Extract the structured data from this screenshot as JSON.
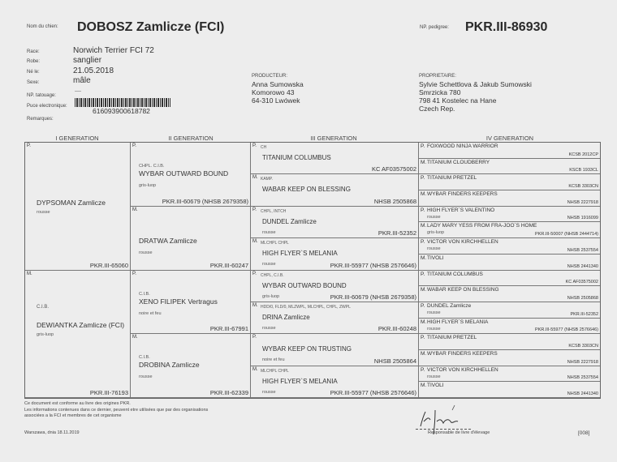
{
  "header": {
    "dog_name_label": "Nom du chien:",
    "dog_name": "DOBOSZ Zamlicze (FCI)",
    "pedigree_label": "NP. pedigree:",
    "pedigree_no": "PKR.III-86930",
    "fields": [
      {
        "label": "Race:",
        "value": "Norwich Terrier FCI 72"
      },
      {
        "label": "Robe:",
        "value": "sanglier"
      },
      {
        "label": "Né le:",
        "value": "21.05.2018"
      },
      {
        "label": "Sexe:",
        "value": "mâle"
      },
      {
        "label": "NP. tatouage:",
        "value": "----"
      },
      {
        "label": "Puce electronique:",
        "value": "616093900618782"
      },
      {
        "label": "Remarques:",
        "value": ""
      }
    ],
    "producer": {
      "label": "PRODUCTEUR:",
      "lines": [
        "Anna Sumowska",
        "Komorowo 43",
        "64-310 Lwówek"
      ]
    },
    "owner": {
      "label": "PROPRIETAIRE:",
      "lines": [
        "Sylvie Schettlova & Jakub Sumowski",
        "Smrzicka 780",
        "798 41 Kostelec na Hane",
        "Czech Rep."
      ]
    }
  },
  "generations": [
    "I GENERATION",
    "II GENERATION",
    "III GENERATION",
    "IV GENERATION"
  ],
  "pedigree": {
    "g1": [
      {
        "pm": "P.",
        "titles": "",
        "name": "DYPSOMAN Zamlicze",
        "color": "rousse",
        "reg": "PKR.III-65060"
      },
      {
        "pm": "M.",
        "titles": "C.I.B.",
        "name": "DEWIANTKA Zamlicze (FCI)",
        "color": "gris-luop",
        "reg": "PKR.III-76193"
      }
    ],
    "g2": [
      {
        "pm": "P.",
        "titles": "CHPL. C.I.B.",
        "name": "WYBAR OUTWARD BOUND",
        "color": "gris-luop",
        "reg": "PKR.III-60679 (NHSB 2679358)"
      },
      {
        "pm": "M.",
        "titles": "",
        "name": "DRATWA Zamlicze",
        "color": "rousse",
        "reg": "PKR.III-60247"
      },
      {
        "pm": "P.",
        "titles": "C.I.B.",
        "name": "XENO FILIPEK Vertragus",
        "color": "noire et feu",
        "reg": "PKR.III-67991"
      },
      {
        "pm": "M.",
        "titles": "C.I.B.",
        "name": "DROBINA Zamlicze",
        "color": "rousse",
        "reg": "PKR.III-62339"
      }
    ],
    "g3": [
      {
        "pm": "P.",
        "titles": "CH",
        "name": "TITANIUM COLUMBUS",
        "color": "",
        "reg": "KC AF03575002"
      },
      {
        "pm": "M.",
        "titles": "KAMP.",
        "name": "WABAR KEEP ON BLESSING",
        "color": "",
        "reg": "NHSB 2505868"
      },
      {
        "pm": "P.",
        "titles": "CHPL, INTCH",
        "name": "DUNDEL Zamlicze",
        "color": "rousse",
        "reg": "PKR.III-52352"
      },
      {
        "pm": "M.",
        "titles": "MLCHPL CHPL",
        "name": "HIGH FLYER`S MELANIA",
        "color": "rousse",
        "reg": "PKR.III-55977 (NHSB 2576646)"
      },
      {
        "pm": "P.",
        "titles": "CHPL, C.I.B.",
        "name": "WYBAR OUTWARD BOUND",
        "color": "gris-luop",
        "reg": "PKR.III-60679 (NHSB 2679358)"
      },
      {
        "pm": "M.",
        "titles": "HDD/0, FLD/0, MLZWPL, MLCHPL, CHPL, ZWPL",
        "name": "DRINA Zamlicze",
        "color": "rousse",
        "reg": "PKR.III-60248"
      },
      {
        "pm": "P.",
        "titles": "",
        "name": "WYBAR KEEP ON TRUSTING",
        "color": "noire et feu",
        "reg": "NHSB 2505864"
      },
      {
        "pm": "M.",
        "titles": "MLCHPL CHPL",
        "name": "HIGH FLYER`S MELANIA",
        "color": "rousse",
        "reg": "PKR.III-55977 (NHSB 2576646)"
      }
    ],
    "g4": [
      {
        "pm": "P.",
        "name": "FOXWOOD NINJA WARRIOR",
        "color": "",
        "reg": "KCSB 2012CP"
      },
      {
        "pm": "M.",
        "name": "TITANIUM CLOUDBERRY",
        "color": "",
        "reg": "KSCB 1933CL"
      },
      {
        "pm": "P.",
        "name": "TITANIUM PRETZEL",
        "color": "",
        "reg": "KCSB 3303CN"
      },
      {
        "pm": "M.",
        "name": "WYBAR FINDERS KEEPERS",
        "color": "",
        "reg": "NHSB 2227918"
      },
      {
        "pm": "P.",
        "name": "HIGH FLYER`S VALENTINO",
        "color": "rousse",
        "reg": "NHSB 1916099"
      },
      {
        "pm": "M.",
        "name": "LADY MARY YESS FROM FRA-JOO`S HOME",
        "color": "gris-luop",
        "reg": "PKR.III-50007 (NHSB 2444714)"
      },
      {
        "pm": "P.",
        "name": "VICTOR VON KIRCHHELLEN",
        "color": "rousse",
        "reg": "NHSB 2537554"
      },
      {
        "pm": "M.",
        "name": "TIVOLI",
        "color": "",
        "reg": "NHSB 2441340"
      },
      {
        "pm": "P.",
        "name": "TITANIUM COLUMBUS",
        "color": "",
        "reg": "KC AF03575002"
      },
      {
        "pm": "M.",
        "name": "WABAR KEEP ON BLESSING",
        "color": "",
        "reg": "NHSB 2505868"
      },
      {
        "pm": "P.",
        "name": "DUNDEL Zamlicze",
        "color": "rousse",
        "reg": "PKR.III-52352"
      },
      {
        "pm": "M.",
        "name": "HIGH FLYER`S MELANIA",
        "color": "rousse",
        "reg": "PKR.III-55977 (NHSB 2576646)"
      },
      {
        "pm": "P.",
        "name": "TITANIUM PRETZEL",
        "color": "",
        "reg": "KCSB 3303CN"
      },
      {
        "pm": "M.",
        "name": "WYBAR FINDERS KEEPERS",
        "color": "",
        "reg": "NHSB 2227918"
      },
      {
        "pm": "P.",
        "name": "VICTOR VON KIRCHHELLEN",
        "color": "rousse",
        "reg": "NHSB 2537554"
      },
      {
        "pm": "M.",
        "name": "TIVOLI",
        "color": "",
        "reg": "NHSB 2441340"
      }
    ]
  },
  "footer": {
    "lines": [
      "Ce document est conforme au livre des origines PKR.",
      "Les informations contenues dans ce dernier, peuvent etre utilisées que par des organisations",
      "associées a la FCI et membres de cet organisme"
    ],
    "place_date": "Warszawa, dnia  18.11.2019",
    "signature_caption": "Responsable de livre d'élevage",
    "page_code": "[008]"
  }
}
